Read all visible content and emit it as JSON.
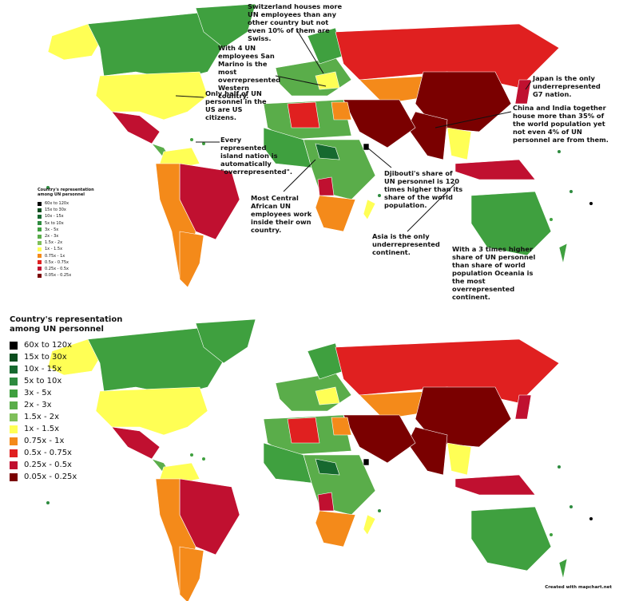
{
  "annotations": [
    "Switzerland houses more UN employees than any other country but not even 10% of them are Swiss.",
    "With 4 UN employees San Marino is the most overrepresented Western country.",
    "Only half of UN personnel in the US are US citizens.",
    "Every represented island nation is automatically \"overrepresented\".",
    "Most Central African UN employees work inside their own country.",
    "Djibouti's share of UN personnel is 120 times higher than its share of the world population.",
    "Japan is the only underrepresented G7 nation.",
    "China and India together house more than 35% of the world population yet not even 4% of UN personnel are from them.",
    "Asia is the only underrepresented continent.",
    "With a 3 times higher share of UN personnel than share of world population Oceania is the most overrepresented continent."
  ],
  "legend": {
    "title": "Country's representation among UN personnel",
    "items": [
      {
        "label": "60x to 120x",
        "color": "#000000"
      },
      {
        "label": "15x to 30x",
        "color": "#0b4d1e"
      },
      {
        "label": "10x - 15x",
        "color": "#16692f"
      },
      {
        "label": "5x to 10x",
        "color": "#2e8b3f"
      },
      {
        "label": "3x - 5x",
        "color": "#3fa03f"
      },
      {
        "label": "2x - 3x",
        "color": "#5aad4a"
      },
      {
        "label": "1.5x - 2x",
        "color": "#7fbf5a"
      },
      {
        "label": "1x - 1.5x",
        "color": "#ffff55"
      },
      {
        "label": "0.75x - 1x",
        "color": "#f48a1a"
      },
      {
        "label": "0.5x - 0.75x",
        "color": "#e02020"
      },
      {
        "label": "0.25x - 0.5x",
        "color": "#c01030"
      },
      {
        "label": "0.05x - 0.25x",
        "color": "#7a0000"
      }
    ]
  },
  "credit": "Created with mapchart.net"
}
